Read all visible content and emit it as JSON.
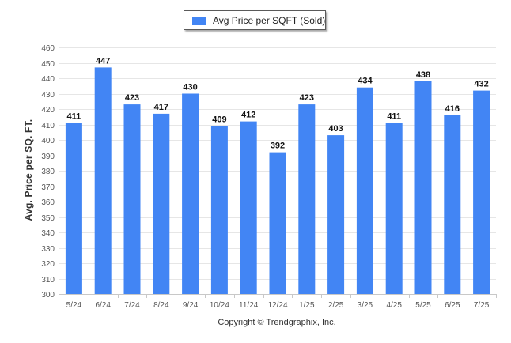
{
  "legend": {
    "label": "Avg Price per SQFT (Sold)",
    "color": "#4285f4"
  },
  "copyright": "Copyright © Trendgraphix, Inc.",
  "chart_data": {
    "type": "bar",
    "title": "",
    "xlabel": "",
    "ylabel": "Avg. Price per SQ. FT.",
    "categories": [
      "5/24",
      "6/24",
      "7/24",
      "8/24",
      "9/24",
      "10/24",
      "11/24",
      "12/24",
      "1/25",
      "2/25",
      "3/25",
      "4/25",
      "5/25",
      "6/25",
      "7/25"
    ],
    "series": [
      {
        "name": "Avg Price per SQFT (Sold)",
        "values": [
          411,
          447,
          423,
          417,
          430,
          409,
          412,
          392,
          423,
          403,
          434,
          411,
          438,
          416,
          432
        ],
        "color": "#4285f4"
      }
    ],
    "ylim": [
      300,
      460
    ],
    "yticks": [
      300,
      310,
      320,
      330,
      340,
      350,
      360,
      370,
      380,
      390,
      400,
      410,
      420,
      430,
      440,
      450,
      460
    ],
    "grid": true,
    "legend_position": "top-center",
    "data_labels": true
  }
}
